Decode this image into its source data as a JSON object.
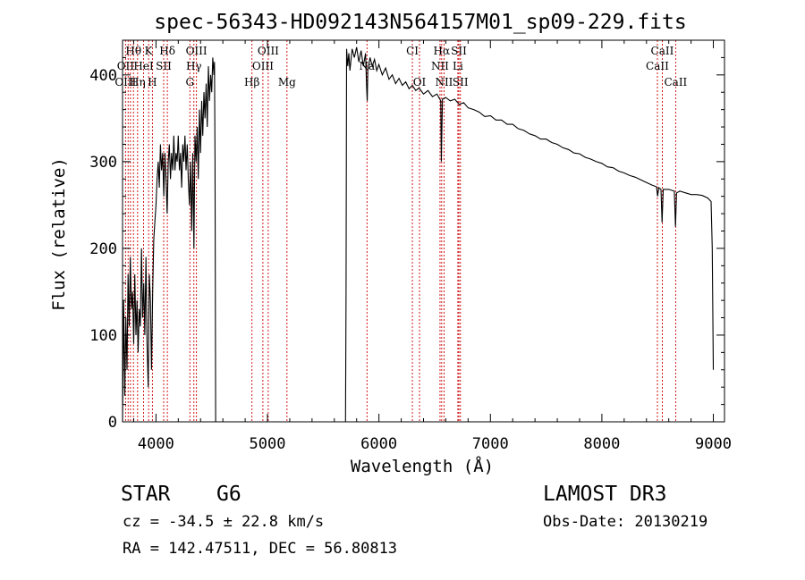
{
  "chart_data": {
    "type": "line",
    "title": "spec-56343-HD092143N564157M01_sp09-229.fits",
    "xlabel": "Wavelength (Å)",
    "ylabel": "Flux (relative)",
    "xlim": [
      3700,
      9100
    ],
    "ylim": [
      0,
      440
    ],
    "x_ticks": [
      4000,
      5000,
      6000,
      7000,
      8000,
      9000
    ],
    "y_ticks": [
      0,
      100,
      200,
      300,
      400
    ],
    "series": [
      {
        "name": "spectrum",
        "points": [
          [
            3700,
            0
          ],
          [
            3710,
            140
          ],
          [
            3720,
            30
          ],
          [
            3730,
            120
          ],
          [
            3740,
            60
          ],
          [
            3750,
            170
          ],
          [
            3760,
            110
          ],
          [
            3770,
            190
          ],
          [
            3780,
            130
          ],
          [
            3790,
            150
          ],
          [
            3800,
            90
          ],
          [
            3810,
            170
          ],
          [
            3820,
            100
          ],
          [
            3830,
            140
          ],
          [
            3840,
            80
          ],
          [
            3850,
            130
          ],
          [
            3860,
            110
          ],
          [
            3870,
            200
          ],
          [
            3880,
            120
          ],
          [
            3890,
            160
          ],
          [
            3900,
            100
          ],
          [
            3910,
            190
          ],
          [
            3920,
            90
          ],
          [
            3930,
            40
          ],
          [
            3940,
            170
          ],
          [
            3950,
            140
          ],
          [
            3960,
            60
          ],
          [
            3970,
            150
          ],
          [
            3980,
            210
          ],
          [
            3990,
            230
          ],
          [
            4000,
            250
          ],
          [
            4010,
            280
          ],
          [
            4020,
            300
          ],
          [
            4030,
            270
          ],
          [
            4040,
            320
          ],
          [
            4050,
            290
          ],
          [
            4060,
            310
          ],
          [
            4070,
            260
          ],
          [
            4080,
            310
          ],
          [
            4090,
            280
          ],
          [
            4100,
            240
          ],
          [
            4110,
            300
          ],
          [
            4120,
            320
          ],
          [
            4130,
            280
          ],
          [
            4140,
            310
          ],
          [
            4150,
            290
          ],
          [
            4160,
            330
          ],
          [
            4170,
            290
          ],
          [
            4180,
            310
          ],
          [
            4190,
            300
          ],
          [
            4200,
            330
          ],
          [
            4210,
            290
          ],
          [
            4220,
            310
          ],
          [
            4230,
            270
          ],
          [
            4240,
            320
          ],
          [
            4250,
            300
          ],
          [
            4260,
            330
          ],
          [
            4270,
            290
          ],
          [
            4280,
            320
          ],
          [
            4290,
            280
          ],
          [
            4300,
            250
          ],
          [
            4310,
            300
          ],
          [
            4320,
            220
          ],
          [
            4330,
            310
          ],
          [
            4340,
            200
          ],
          [
            4350,
            330
          ],
          [
            4360,
            300
          ],
          [
            4370,
            340
          ],
          [
            4380,
            280
          ],
          [
            4390,
            360
          ],
          [
            4400,
            310
          ],
          [
            4410,
            370
          ],
          [
            4420,
            330
          ],
          [
            4430,
            380
          ],
          [
            4440,
            350
          ],
          [
            4450,
            390
          ],
          [
            4460,
            340
          ],
          [
            4470,
            410
          ],
          [
            4480,
            370
          ],
          [
            4490,
            400
          ],
          [
            4500,
            380
          ],
          [
            4510,
            420
          ],
          [
            4520,
            400
          ],
          [
            4525,
            415
          ],
          [
            4530,
            300
          ],
          [
            4535,
            0
          ],
          [
            5700,
            0
          ],
          [
            5705,
            150
          ],
          [
            5710,
            430
          ],
          [
            5720,
            410
          ],
          [
            5730,
            425
          ],
          [
            5740,
            405
          ],
          [
            5760,
            430
          ],
          [
            5780,
            420
          ],
          [
            5800,
            432
          ],
          [
            5820,
            415
          ],
          [
            5840,
            428
          ],
          [
            5860,
            410
          ],
          [
            5880,
            425
          ],
          [
            5890,
            385
          ],
          [
            5895,
            370
          ],
          [
            5900,
            405
          ],
          [
            5920,
            420
          ],
          [
            5940,
            410
          ],
          [
            5960,
            418
          ],
          [
            5980,
            405
          ],
          [
            6000,
            412
          ],
          [
            6030,
            400
          ],
          [
            6060,
            408
          ],
          [
            6090,
            395
          ],
          [
            6120,
            400
          ],
          [
            6150,
            390
          ],
          [
            6180,
            396
          ],
          [
            6210,
            388
          ],
          [
            6240,
            392
          ],
          [
            6270,
            384
          ],
          [
            6300,
            388
          ],
          [
            6330,
            382
          ],
          [
            6360,
            385
          ],
          [
            6400,
            378
          ],
          [
            6440,
            382
          ],
          [
            6480,
            375
          ],
          [
            6520,
            378
          ],
          [
            6555,
            370
          ],
          [
            6560,
            300
          ],
          [
            6565,
            340
          ],
          [
            6570,
            372
          ],
          [
            6600,
            374
          ],
          [
            6640,
            370
          ],
          [
            6680,
            372
          ],
          [
            6720,
            366
          ],
          [
            6760,
            368
          ],
          [
            6800,
            362
          ],
          [
            6850,
            360
          ],
          [
            6900,
            357
          ],
          [
            6950,
            352
          ],
          [
            7000,
            353
          ],
          [
            7050,
            348
          ],
          [
            7100,
            348
          ],
          [
            7150,
            343
          ],
          [
            7200,
            343
          ],
          [
            7250,
            338
          ],
          [
            7300,
            336
          ],
          [
            7350,
            332
          ],
          [
            7400,
            330
          ],
          [
            7450,
            326
          ],
          [
            7500,
            326
          ],
          [
            7550,
            322
          ],
          [
            7600,
            320
          ],
          [
            7650,
            316
          ],
          [
            7700,
            314
          ],
          [
            7750,
            310
          ],
          [
            7800,
            309
          ],
          [
            7850,
            305
          ],
          [
            7900,
            303
          ],
          [
            7950,
            300
          ],
          [
            8000,
            298
          ],
          [
            8050,
            294
          ],
          [
            8100,
            293
          ],
          [
            8150,
            289
          ],
          [
            8200,
            287
          ],
          [
            8250,
            284
          ],
          [
            8300,
            282
          ],
          [
            8350,
            279
          ],
          [
            8400,
            276
          ],
          [
            8450,
            273
          ],
          [
            8490,
            271
          ],
          [
            8500,
            260
          ],
          [
            8510,
            270
          ],
          [
            8530,
            268
          ],
          [
            8540,
            230
          ],
          [
            8550,
            268
          ],
          [
            8600,
            268
          ],
          [
            8650,
            266
          ],
          [
            8660,
            225
          ],
          [
            8670,
            264
          ],
          [
            8700,
            266
          ],
          [
            8750,
            264
          ],
          [
            8800,
            262
          ],
          [
            8850,
            262
          ],
          [
            8900,
            261
          ],
          [
            8950,
            258
          ],
          [
            8980,
            254
          ],
          [
            8990,
            200
          ],
          [
            9000,
            60
          ]
        ]
      }
    ],
    "line_labels": [
      {
        "text": "Hθ",
        "wavelength": 3798,
        "row": 0
      },
      {
        "text": "K",
        "wavelength": 3934,
        "row": 0
      },
      {
        "text": "Hδ",
        "wavelength": 4102,
        "row": 0
      },
      {
        "text": "OIII",
        "wavelength": 4363,
        "row": 0
      },
      {
        "text": "OIII",
        "wavelength": 5007,
        "row": 0
      },
      {
        "text": "CI",
        "wavelength": 6300,
        "row": 0
      },
      {
        "text": "Hα",
        "wavelength": 6563,
        "row": 0
      },
      {
        "text": "SII",
        "wavelength": 6717,
        "row": 0
      },
      {
        "text": "CaII",
        "wavelength": 8542,
        "row": 0
      },
      {
        "text": "OII",
        "wavelength": 3727,
        "row": 1
      },
      {
        "text": "HeI",
        "wavelength": 3889,
        "row": 1
      },
      {
        "text": "SII",
        "wavelength": 4069,
        "row": 1
      },
      {
        "text": "Hγ",
        "wavelength": 4340,
        "row": 1
      },
      {
        "text": "OIII",
        "wavelength": 4959,
        "row": 1
      },
      {
        "text": "Na",
        "wavelength": 5893,
        "row": 1
      },
      {
        "text": "NII",
        "wavelength": 6548,
        "row": 1
      },
      {
        "text": "Li",
        "wavelength": 6708,
        "row": 1
      },
      {
        "text": "CaII",
        "wavelength": 8498,
        "row": 1
      },
      {
        "text": "OIII",
        "wavelength": 3727,
        "row": 2
      },
      {
        "text": "Hη",
        "wavelength": 3835,
        "row": 2
      },
      {
        "text": "H",
        "wavelength": 3968,
        "row": 2
      },
      {
        "text": "G",
        "wavelength": 4304,
        "row": 2
      },
      {
        "text": "Hβ",
        "wavelength": 4861,
        "row": 2
      },
      {
        "text": "Mg",
        "wavelength": 5175,
        "row": 2
      },
      {
        "text": "OI",
        "wavelength": 6364,
        "row": 2
      },
      {
        "text": "NII",
        "wavelength": 6584,
        "row": 2
      },
      {
        "text": "SII",
        "wavelength": 6731,
        "row": 2
      },
      {
        "text": "CaII",
        "wavelength": 8662,
        "row": 2
      }
    ],
    "line_markers": [
      3727,
      3750,
      3771,
      3798,
      3835,
      3889,
      3934,
      3968,
      4069,
      4102,
      4304,
      4340,
      4363,
      4861,
      4959,
      5007,
      5175,
      5893,
      6300,
      6364,
      6548,
      6563,
      6584,
      6708,
      6717,
      6731,
      8498,
      8542,
      8662
    ],
    "marker_color": "#cc0000",
    "line_color": "#000000"
  },
  "info": {
    "class_label": "STAR",
    "subclass": "G6",
    "cz": "cz = -34.5 ± 22.8 km/s",
    "coords": "RA = 142.47511, DEC =  56.80813",
    "survey": "LAMOST DR3",
    "obs_date": "Obs-Date: 20130219"
  }
}
